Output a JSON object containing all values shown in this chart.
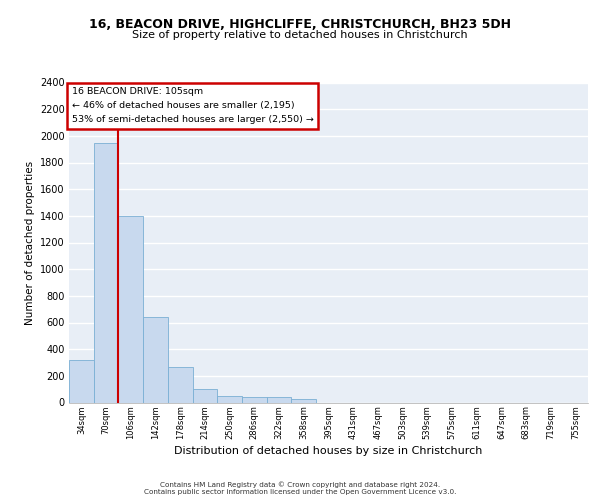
{
  "title_line1": "16, BEACON DRIVE, HIGHCLIFFE, CHRISTCHURCH, BH23 5DH",
  "title_line2": "Size of property relative to detached houses in Christchurch",
  "xlabel": "Distribution of detached houses by size in Christchurch",
  "ylabel": "Number of detached properties",
  "bin_labels": [
    "34sqm",
    "70sqm",
    "106sqm",
    "142sqm",
    "178sqm",
    "214sqm",
    "250sqm",
    "286sqm",
    "322sqm",
    "358sqm",
    "395sqm",
    "431sqm",
    "467sqm",
    "503sqm",
    "539sqm",
    "575sqm",
    "611sqm",
    "647sqm",
    "683sqm",
    "719sqm",
    "755sqm"
  ],
  "bar_values": [
    320,
    1950,
    1400,
    640,
    270,
    100,
    50,
    45,
    40,
    25,
    0,
    0,
    0,
    0,
    0,
    0,
    0,
    0,
    0,
    0,
    0
  ],
  "bar_color": "#c8d9ee",
  "bar_edge_color": "#7aafd4",
  "vline_x": 1.5,
  "vline_color": "#cc0000",
  "annotation_text": "16 BEACON DRIVE: 105sqm\n← 46% of detached houses are smaller (2,195)\n53% of semi-detached houses are larger (2,550) →",
  "annotation_box_color": "#ffffff",
  "annotation_box_edge": "#cc0000",
  "ylim": [
    0,
    2400
  ],
  "yticks": [
    0,
    200,
    400,
    600,
    800,
    1000,
    1200,
    1400,
    1600,
    1800,
    2000,
    2200,
    2400
  ],
  "bg_color": "#e8eef6",
  "grid_color": "#ffffff",
  "footer_line1": "Contains HM Land Registry data © Crown copyright and database right 2024.",
  "footer_line2": "Contains public sector information licensed under the Open Government Licence v3.0."
}
